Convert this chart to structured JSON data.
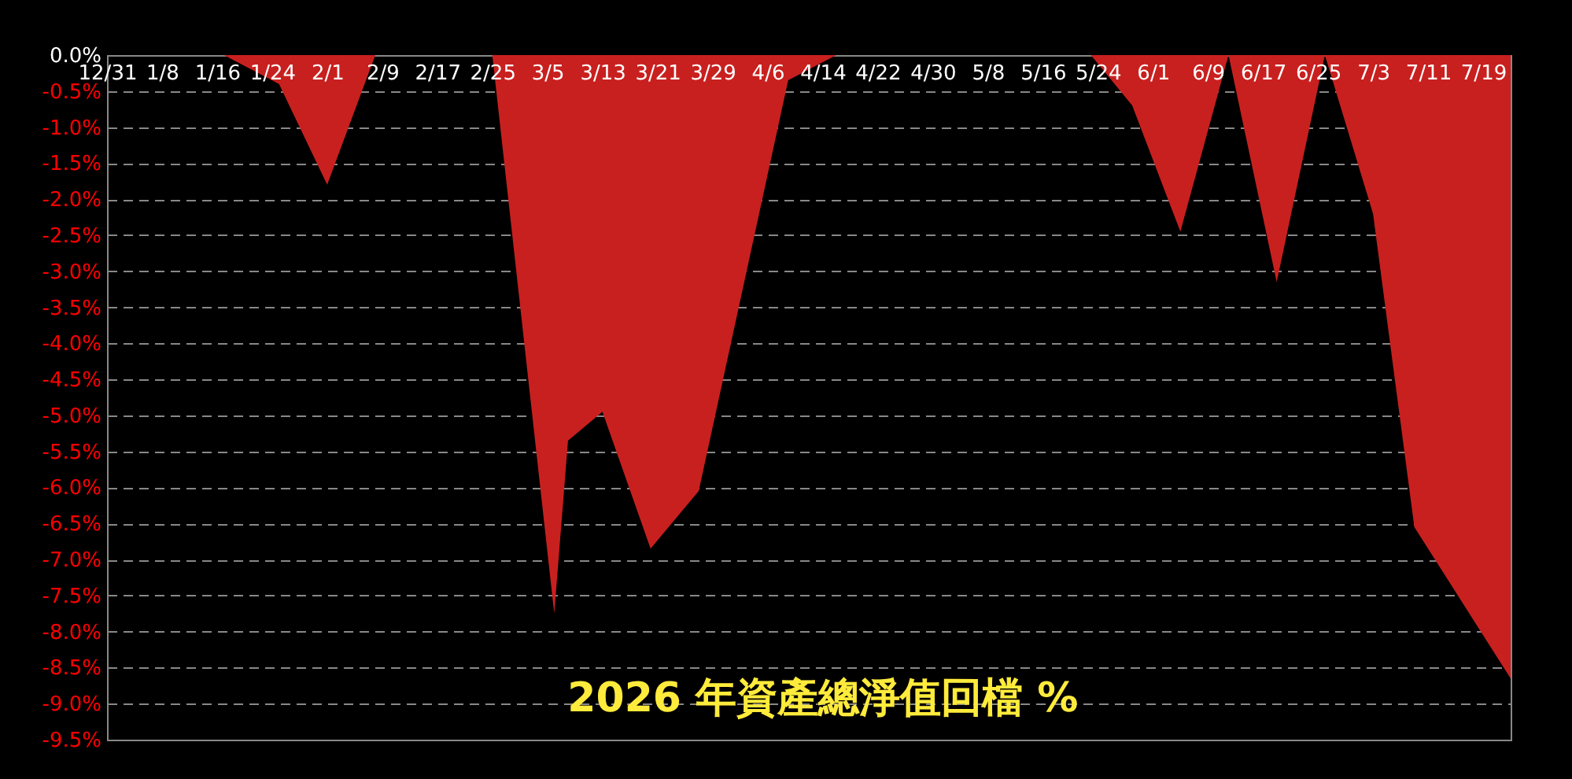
{
  "chart_data": {
    "type": "area",
    "title": "2026 年資產總淨值回檔 %",
    "x": [
      "2025-12-31",
      "2026-01-17",
      "2026-01-25",
      "2026-02-01",
      "2026-02-08",
      "2026-02-25",
      "2026-03-06",
      "2026-03-08",
      "2026-03-13",
      "2026-03-20",
      "2026-03-27",
      "2026-04-09",
      "2026-04-16",
      "2026-05-23",
      "2026-05-29",
      "2026-06-05",
      "2026-06-12",
      "2026-06-19",
      "2026-06-26",
      "2026-07-03",
      "2026-07-09",
      "2026-07-23"
    ],
    "series": [
      {
        "color": "#c8201f",
        "values": [
          0,
          0,
          -0.4,
          -1.8,
          0,
          0,
          -7.75,
          -5.35,
          -4.95,
          -6.85,
          -6.05,
          -0.35,
          0,
          0,
          -0.7,
          -2.45,
          0,
          -3.15,
          0,
          -2.2,
          -6.55,
          -8.65
        ]
      }
    ],
    "xlim": [
      "2025-12-31",
      "2026-07-23"
    ],
    "xticks": [
      {
        "value": "2025-12-31",
        "label": "12/31"
      },
      {
        "value": "2026-01-08",
        "label": "1/8"
      },
      {
        "value": "2026-01-16",
        "label": "1/16"
      },
      {
        "value": "2026-01-24",
        "label": "1/24"
      },
      {
        "value": "2026-02-01",
        "label": "2/1"
      },
      {
        "value": "2026-02-09",
        "label": "2/9"
      },
      {
        "value": "2026-02-17",
        "label": "2/17"
      },
      {
        "value": "2026-02-25",
        "label": "2/25"
      },
      {
        "value": "2026-03-05",
        "label": "3/5"
      },
      {
        "value": "2026-03-13",
        "label": "3/13"
      },
      {
        "value": "2026-03-21",
        "label": "3/21"
      },
      {
        "value": "2026-03-29",
        "label": "3/29"
      },
      {
        "value": "2026-04-06",
        "label": "4/6"
      },
      {
        "value": "2026-04-14",
        "label": "4/14"
      },
      {
        "value": "2026-04-22",
        "label": "4/22"
      },
      {
        "value": "2026-04-30",
        "label": "4/30"
      },
      {
        "value": "2026-05-08",
        "label": "5/8"
      },
      {
        "value": "2026-05-16",
        "label": "5/16"
      },
      {
        "value": "2026-05-24",
        "label": "5/24"
      },
      {
        "value": "2026-06-01",
        "label": "6/1"
      },
      {
        "value": "2026-06-09",
        "label": "6/9"
      },
      {
        "value": "2026-06-17",
        "label": "6/17"
      },
      {
        "value": "2026-06-25",
        "label": "6/25"
      },
      {
        "value": "2026-07-03",
        "label": "7/3"
      },
      {
        "value": "2026-07-11",
        "label": "7/11"
      },
      {
        "value": "2026-07-19",
        "label": "7/19"
      }
    ],
    "ylim": [
      -9.5,
      0
    ],
    "yticks": [
      {
        "value": 0,
        "label": "0.0%"
      },
      {
        "value": -0.5,
        "label": "-0.5%"
      },
      {
        "value": -1,
        "label": "-1.0%"
      },
      {
        "value": -1.5,
        "label": "-1.5%"
      },
      {
        "value": -2,
        "label": "-2.0%"
      },
      {
        "value": -2.5,
        "label": "-2.5%"
      },
      {
        "value": -3,
        "label": "-3.0%"
      },
      {
        "value": -3.5,
        "label": "-3.5%"
      },
      {
        "value": -4,
        "label": "-4.0%"
      },
      {
        "value": -4.5,
        "label": "-4.5%"
      },
      {
        "value": -5,
        "label": "-5.0%"
      },
      {
        "value": -5.5,
        "label": "-5.5%"
      },
      {
        "value": -6,
        "label": "-6.0%"
      },
      {
        "value": -6.5,
        "label": "-6.5%"
      },
      {
        "value": -7,
        "label": "-7.0%"
      },
      {
        "value": -7.5,
        "label": "-7.5%"
      },
      {
        "value": -8,
        "label": "-8.0%"
      },
      {
        "value": -8.5,
        "label": "-8.5%"
      },
      {
        "value": -9,
        "label": "-9.0%"
      },
      {
        "value": -9.5,
        "label": "-9.5%"
      }
    ],
    "grid": "y"
  }
}
